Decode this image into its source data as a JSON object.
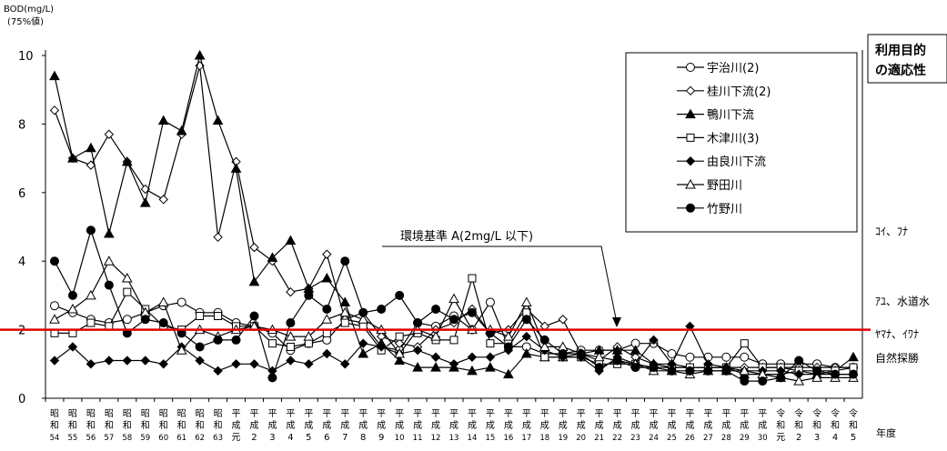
{
  "chart_data": {
    "type": "line",
    "ylabel_line1": "BOD(mg/L)",
    "ylabel_line2": "(75%値)",
    "xlabel": "年度",
    "ylim": [
      0,
      10
    ],
    "yticks": [
      0,
      2,
      4,
      6,
      8,
      10
    ],
    "categories": [
      [
        "昭",
        "和",
        "54"
      ],
      [
        "昭",
        "和",
        "55"
      ],
      [
        "昭",
        "和",
        "56"
      ],
      [
        "昭",
        "和",
        "57"
      ],
      [
        "昭",
        "和",
        "58"
      ],
      [
        "昭",
        "和",
        "59"
      ],
      [
        "昭",
        "和",
        "60"
      ],
      [
        "昭",
        "和",
        "61"
      ],
      [
        "昭",
        "和",
        "62"
      ],
      [
        "昭",
        "和",
        "63"
      ],
      [
        "平",
        "成",
        "元"
      ],
      [
        "平",
        "成",
        "2"
      ],
      [
        "平",
        "成",
        "3"
      ],
      [
        "平",
        "成",
        "4"
      ],
      [
        "平",
        "成",
        "5"
      ],
      [
        "平",
        "成",
        "6"
      ],
      [
        "平",
        "成",
        "7"
      ],
      [
        "平",
        "成",
        "8"
      ],
      [
        "平",
        "成",
        "9"
      ],
      [
        "平",
        "成",
        "10"
      ],
      [
        "平",
        "成",
        "11"
      ],
      [
        "平",
        "成",
        "12"
      ],
      [
        "平",
        "成",
        "13"
      ],
      [
        "平",
        "成",
        "14"
      ],
      [
        "平",
        "成",
        "15"
      ],
      [
        "平",
        "成",
        "16"
      ],
      [
        "平",
        "成",
        "17"
      ],
      [
        "平",
        "成",
        "18"
      ],
      [
        "平",
        "成",
        "19"
      ],
      [
        "平",
        "成",
        "20"
      ],
      [
        "平",
        "成",
        "21"
      ],
      [
        "平",
        "成",
        "22"
      ],
      [
        "平",
        "成",
        "23"
      ],
      [
        "平",
        "成",
        "24"
      ],
      [
        "平",
        "成",
        "25"
      ],
      [
        "平",
        "成",
        "26"
      ],
      [
        "平",
        "成",
        "27"
      ],
      [
        "平",
        "成",
        "28"
      ],
      [
        "平",
        "成",
        "29"
      ],
      [
        "平",
        "成",
        "30"
      ],
      [
        "令",
        "和",
        "元"
      ],
      [
        "令",
        "和",
        "2"
      ],
      [
        "令",
        "和",
        "3"
      ],
      [
        "令",
        "和",
        "4"
      ],
      [
        "令",
        "和",
        "5"
      ]
    ],
    "series": [
      {
        "name": "宇治川(2)",
        "marker": "circle-open",
        "values": [
          2.7,
          2.5,
          2.3,
          2.2,
          2.3,
          2.5,
          2.7,
          2.8,
          2.5,
          2.5,
          2.2,
          2.1,
          1.9,
          1.4,
          1.6,
          1.7,
          2.3,
          2.2,
          1.5,
          1.4,
          2.2,
          2.1,
          2.4,
          2.0,
          2.8,
          1.5,
          1.5,
          1.3,
          1.3,
          1.4,
          1.4,
          1.4,
          1.6,
          1.6,
          1.3,
          1.2,
          1.2,
          1.2,
          1.2,
          1.0,
          1.0,
          1.0,
          1.0,
          0.9,
          0.9
        ]
      },
      {
        "name": "桂川下流(2)",
        "marker": "diamond-open",
        "values": [
          8.4,
          7.0,
          6.8,
          7.7,
          6.9,
          6.1,
          5.8,
          7.7,
          9.7,
          4.7,
          6.9,
          4.4,
          4.0,
          3.1,
          3.2,
          4.2,
          2.3,
          2.5,
          1.8,
          1.6,
          1.5,
          2.0,
          2.2,
          2.6,
          1.9,
          2.0,
          2.6,
          2.1,
          2.3,
          1.3,
          1.1,
          1.5,
          1.2,
          1.0,
          0.9,
          0.9,
          0.9,
          0.9,
          0.9,
          0.9,
          0.9,
          0.9,
          0.9,
          0.9,
          0.9
        ]
      },
      {
        "name": "鴨川下流",
        "marker": "triangle-filled",
        "values": [
          9.4,
          7.0,
          7.3,
          4.8,
          6.9,
          5.7,
          8.1,
          7.8,
          10.0,
          8.1,
          6.7,
          3.4,
          4.1,
          4.6,
          3.2,
          3.5,
          2.8,
          1.3,
          1.6,
          1.1,
          0.9,
          0.9,
          0.9,
          0.8,
          0.9,
          0.7,
          1.3,
          1.2,
          1.2,
          1.3,
          1.4,
          1.4,
          1.4,
          1.0,
          1.0,
          0.9,
          0.9,
          0.9,
          0.7,
          0.7,
          0.7,
          0.8,
          0.7,
          0.8,
          1.2
        ]
      },
      {
        "name": "木津川(3)",
        "marker": "square-open",
        "values": [
          1.9,
          1.9,
          2.2,
          2.1,
          3.1,
          2.6,
          2.1,
          2.0,
          2.4,
          2.4,
          2.1,
          2.1,
          1.6,
          1.5,
          1.6,
          1.9,
          2.2,
          2.1,
          1.4,
          1.8,
          1.9,
          1.7,
          1.7,
          3.5,
          1.6,
          1.6,
          2.5,
          1.2,
          1.2,
          1.2,
          1.0,
          1.0,
          1.0,
          0.9,
          0.9,
          0.9,
          0.9,
          0.9,
          1.6,
          0.9,
          0.9,
          0.8,
          0.8,
          0.8,
          0.9
        ]
      },
      {
        "name": "由良川下流",
        "marker": "diamond-filled",
        "values": [
          1.1,
          1.5,
          1.0,
          1.1,
          1.1,
          1.1,
          1.0,
          1.5,
          1.1,
          0.8,
          1.0,
          1.0,
          0.8,
          1.1,
          1.0,
          1.3,
          1.0,
          1.6,
          1.5,
          1.3,
          1.4,
          1.2,
          1.0,
          1.2,
          1.2,
          1.4,
          1.8,
          1.4,
          1.2,
          1.2,
          0.8,
          1.2,
          1.0,
          1.7,
          1.0,
          2.1,
          1.0,
          0.9,
          0.8,
          0.8,
          0.8,
          0.7,
          0.7,
          0.7,
          0.7
        ]
      },
      {
        "name": "野田川",
        "marker": "triangle-open",
        "values": [
          2.3,
          2.6,
          3.0,
          4.0,
          3.5,
          2.5,
          2.8,
          1.4,
          2.0,
          1.8,
          2.0,
          2.1,
          2.0,
          1.8,
          1.8,
          2.3,
          2.5,
          2.3,
          2.0,
          1.3,
          2.0,
          1.8,
          2.9,
          2.0,
          2.0,
          1.8,
          2.8,
          1.5,
          1.5,
          1.3,
          1.2,
          1.1,
          1.0,
          0.8,
          0.8,
          0.7,
          0.8,
          0.8,
          0.8,
          0.7,
          0.6,
          0.5,
          0.6,
          0.6,
          0.6
        ]
      },
      {
        "name": "竹野川",
        "marker": "circle-filled",
        "values": [
          4.0,
          3.0,
          4.9,
          3.3,
          1.9,
          2.3,
          2.2,
          1.9,
          1.5,
          1.7,
          1.7,
          2.4,
          0.6,
          2.2,
          3.0,
          2.6,
          4.0,
          2.5,
          2.6,
          3.0,
          2.2,
          2.6,
          2.3,
          2.5,
          1.9,
          1.5,
          2.3,
          1.7,
          1.3,
          1.3,
          0.9,
          1.1,
          0.9,
          0.9,
          0.8,
          0.8,
          0.8,
          0.8,
          0.5,
          0.5,
          0.6,
          1.1,
          0.8,
          0.7,
          0.7
        ]
      }
    ],
    "reference_line": {
      "value": 2,
      "color": "#e00000"
    },
    "annotation": "環境基準 A(2mg/L 以下)",
    "side_title_line1": "利用目的",
    "side_title_line2": "の適応性",
    "suitability_labels": [
      {
        "text": "ｺｲ、ﾌﾅ",
        "y": 4.9
      },
      {
        "text": "ｱﾕ、水道水",
        "y": 2.85
      },
      {
        "text": "ﾔﾏﾅ、ｲﾜﾅ",
        "y": 1.9
      },
      {
        "text": "自然探勝",
        "y": 1.2
      }
    ],
    "legend_position": "top-right"
  }
}
